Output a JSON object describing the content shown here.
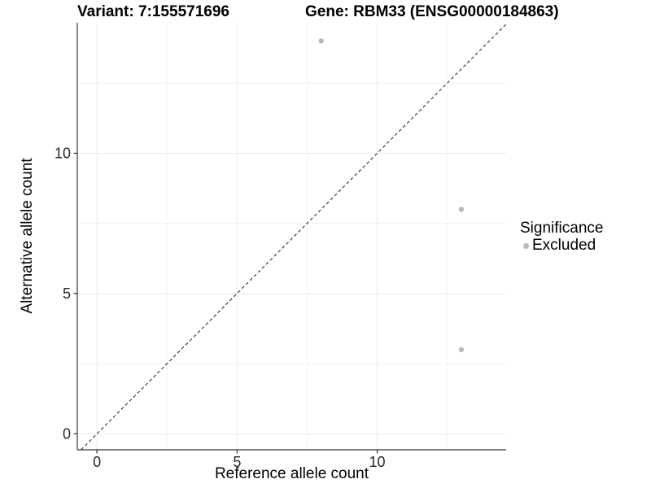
{
  "chart_data": {
    "type": "scatter",
    "title_left": "Variant: 7:155571696",
    "title_right": "Gene: RBM33 (ENSG00000184863)",
    "xlabel": "Reference allele count",
    "ylabel": "Alternative allele count",
    "xlim": [
      -0.7,
      14.6
    ],
    "ylim": [
      -0.57,
      14.65
    ],
    "x_ticks": [
      0,
      5,
      10
    ],
    "y_ticks": [
      0,
      5,
      10
    ],
    "x_minor_ticks": [
      2.5,
      7.5,
      12.5
    ],
    "y_minor_ticks": [
      2.5,
      7.5,
      12.5
    ],
    "grid": true,
    "identity_line": {
      "slope": 1,
      "intercept": 0,
      "style": "dashed"
    },
    "series": [
      {
        "name": "Excluded",
        "color": "#b9b9b9",
        "points": [
          {
            "x": 8,
            "y": 14
          },
          {
            "x": 13,
            "y": 8
          },
          {
            "x": 13,
            "y": 3
          }
        ]
      }
    ],
    "legend": {
      "title": "Significance",
      "position": "right",
      "items": [
        {
          "label": "Excluded",
          "color": "#b9b9b9"
        }
      ]
    }
  },
  "colors": {
    "background": "#ffffff",
    "grid_major": "#e9e9e9",
    "grid_minor": "#f3f3f3",
    "axis_line": "#333333",
    "tick_mark": "#333333",
    "tick_label": "#262626",
    "identity_line": "#1a1a1a",
    "point": "#b9b9b9"
  }
}
